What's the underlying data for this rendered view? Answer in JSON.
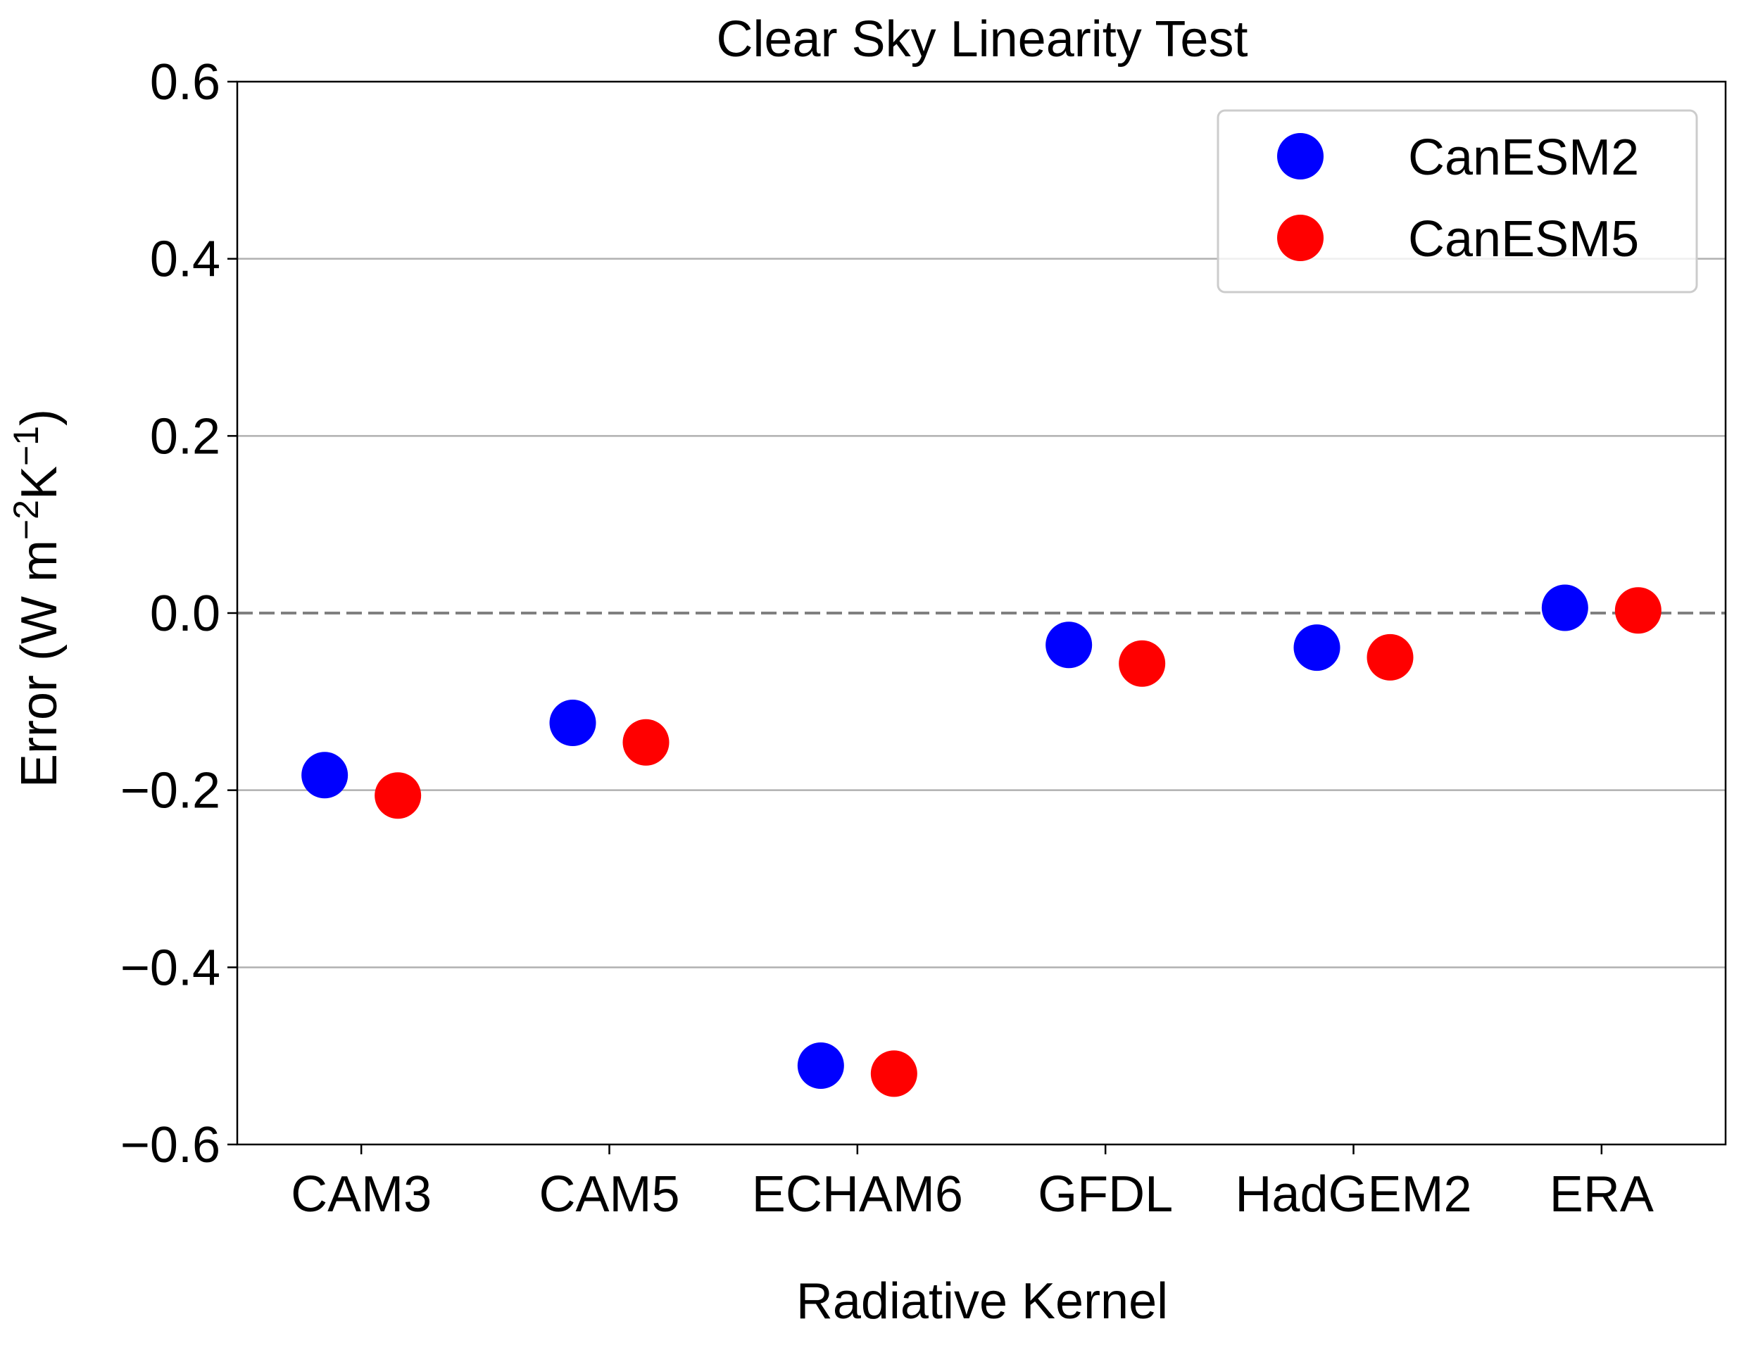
{
  "chart_data": {
    "type": "scatter",
    "title": "Clear Sky Linearity Test",
    "xlabel": "Radiative Kernel",
    "ylabel_main": "Error (W m",
    "ylabel_sup1": "−2",
    "ylabel_mid": "K",
    "ylabel_sup2": "−1",
    "ylabel_end": ")",
    "categories": [
      "CAM3",
      "CAM5",
      "ECHAM6",
      "GFDL",
      "HadGEM2",
      "ERA"
    ],
    "ylim": [
      -0.6,
      0.6
    ],
    "yticks": [
      -0.6,
      -0.4,
      -0.2,
      0.0,
      0.2,
      0.4,
      0.6
    ],
    "ytick_labels": [
      "−0.6",
      "−0.4",
      "−0.2",
      "0.0",
      "0.2",
      "0.4",
      "0.6"
    ],
    "grid": "horizontal",
    "reference_line": 0.0,
    "legend_position": "top-right",
    "series": [
      {
        "name": "CanESM2",
        "color": "#0000ff",
        "values": [
          -0.183,
          -0.124,
          -0.511,
          -0.036,
          -0.039,
          0.006
        ]
      },
      {
        "name": "CanESM5",
        "color": "#ff0000",
        "values": [
          -0.206,
          -0.146,
          -0.52,
          -0.057,
          -0.05,
          0.003
        ]
      }
    ]
  }
}
